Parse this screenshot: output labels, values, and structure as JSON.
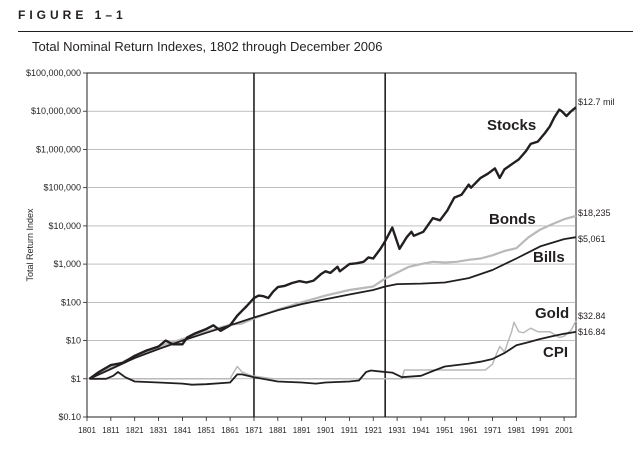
{
  "figure_label": "FIGURE 1–1",
  "title": "Total Nominal Return Indexes, 1802 through December 2006",
  "chart_data": {
    "type": "line",
    "title": "Total Nominal Return Indexes, 1802 through December 2006",
    "xlabel": "",
    "ylabel": "Total Return Index",
    "yscale": "log",
    "xlim": [
      1801,
      2006
    ],
    "ylim": [
      0.1,
      100000000
    ],
    "y_ticks": [
      {
        "value": 100000000,
        "label": "$100,000,000"
      },
      {
        "value": 10000000,
        "label": "$10,000,000"
      },
      {
        "value": 1000000,
        "label": "$1,000,000"
      },
      {
        "value": 100000,
        "label": "$100,000"
      },
      {
        "value": 10000,
        "label": "$10,000"
      },
      {
        "value": 1000,
        "label": "$1,000"
      },
      {
        "value": 100,
        "label": "$100"
      },
      {
        "value": 10,
        "label": "$10"
      },
      {
        "value": 1,
        "label": "$1"
      },
      {
        "value": 0.1,
        "label": "$0.10"
      }
    ],
    "x_ticks": [
      1801,
      1811,
      1821,
      1831,
      1841,
      1851,
      1861,
      1871,
      1881,
      1891,
      1901,
      1911,
      1921,
      1931,
      1941,
      1951,
      1961,
      1971,
      1981,
      1991,
      2001
    ],
    "vertical_markers": [
      1871,
      1926
    ],
    "series": [
      {
        "name": "Stocks",
        "end_label": "$12.7 mil",
        "color": "#231f20",
        "width": 2.4,
        "points": [
          [
            1802,
            1
          ],
          [
            1806,
            1.5
          ],
          [
            1811,
            2.3
          ],
          [
            1816,
            2.6
          ],
          [
            1821,
            4
          ],
          [
            1826,
            5.5
          ],
          [
            1831,
            7
          ],
          [
            1834,
            10
          ],
          [
            1837,
            8
          ],
          [
            1841,
            8
          ],
          [
            1843,
            12
          ],
          [
            1846,
            15
          ],
          [
            1851,
            20
          ],
          [
            1854,
            25
          ],
          [
            1857,
            18
          ],
          [
            1861,
            25
          ],
          [
            1864,
            45
          ],
          [
            1866,
            60
          ],
          [
            1868,
            80
          ],
          [
            1871,
            130
          ],
          [
            1873,
            150
          ],
          [
            1875,
            145
          ],
          [
            1877,
            130
          ],
          [
            1879,
            190
          ],
          [
            1881,
            250
          ],
          [
            1884,
            270
          ],
          [
            1887,
            320
          ],
          [
            1890,
            360
          ],
          [
            1893,
            330
          ],
          [
            1896,
            370
          ],
          [
            1899,
            540
          ],
          [
            1901,
            650
          ],
          [
            1903,
            590
          ],
          [
            1906,
            850
          ],
          [
            1907,
            650
          ],
          [
            1911,
            1000
          ],
          [
            1914,
            1050
          ],
          [
            1917,
            1150
          ],
          [
            1919,
            1500
          ],
          [
            1921,
            1400
          ],
          [
            1924,
            2500
          ],
          [
            1926,
            4000
          ],
          [
            1929,
            9000
          ],
          [
            1932,
            2500
          ],
          [
            1935,
            5000
          ],
          [
            1937,
            7000
          ],
          [
            1938,
            5500
          ],
          [
            1942,
            7000
          ],
          [
            1946,
            16000
          ],
          [
            1949,
            14000
          ],
          [
            1952,
            25000
          ],
          [
            1955,
            55000
          ],
          [
            1958,
            65000
          ],
          [
            1961,
            120000
          ],
          [
            1962,
            100000
          ],
          [
            1966,
            180000
          ],
          [
            1969,
            230000
          ],
          [
            1972,
            320000
          ],
          [
            1974,
            180000
          ],
          [
            1976,
            300000
          ],
          [
            1980,
            450000
          ],
          [
            1982,
            550000
          ],
          [
            1985,
            900000
          ],
          [
            1987,
            1400000
          ],
          [
            1990,
            1600000
          ],
          [
            1993,
            2700000
          ],
          [
            1995,
            4000000
          ],
          [
            1997,
            7000000
          ],
          [
            1999,
            11000000
          ],
          [
            2000,
            10000000
          ],
          [
            2002,
            7500000
          ],
          [
            2004,
            10000000
          ],
          [
            2006,
            12700000
          ]
        ]
      },
      {
        "name": "Bonds",
        "end_label": "$18,235",
        "color": "#b9b9b9",
        "width": 2.2,
        "points": [
          [
            1802,
            1
          ],
          [
            1811,
            2
          ],
          [
            1821,
            3.8
          ],
          [
            1831,
            7
          ],
          [
            1841,
            11
          ],
          [
            1851,
            17
          ],
          [
            1861,
            26
          ],
          [
            1866,
            28
          ],
          [
            1871,
            38
          ],
          [
            1881,
            64
          ],
          [
            1891,
            100
          ],
          [
            1901,
            150
          ],
          [
            1911,
            210
          ],
          [
            1921,
            260
          ],
          [
            1926,
            420
          ],
          [
            1931,
            600
          ],
          [
            1936,
            850
          ],
          [
            1941,
            1000
          ],
          [
            1946,
            1150
          ],
          [
            1951,
            1100
          ],
          [
            1956,
            1150
          ],
          [
            1961,
            1300
          ],
          [
            1966,
            1400
          ],
          [
            1971,
            1700
          ],
          [
            1976,
            2200
          ],
          [
            1981,
            2600
          ],
          [
            1986,
            5000
          ],
          [
            1991,
            8000
          ],
          [
            1996,
            11000
          ],
          [
            2001,
            15000
          ],
          [
            2006,
            18235
          ]
        ]
      },
      {
        "name": "Bills",
        "end_label": "$5,061",
        "color": "#231f20",
        "width": 1.8,
        "points": [
          [
            1802,
            1
          ],
          [
            1811,
            1.8
          ],
          [
            1821,
            3.5
          ],
          [
            1831,
            6
          ],
          [
            1841,
            10
          ],
          [
            1851,
            16
          ],
          [
            1861,
            25
          ],
          [
            1871,
            40
          ],
          [
            1881,
            62
          ],
          [
            1891,
            90
          ],
          [
            1901,
            120
          ],
          [
            1911,
            160
          ],
          [
            1921,
            210
          ],
          [
            1926,
            260
          ],
          [
            1931,
            300
          ],
          [
            1941,
            310
          ],
          [
            1951,
            330
          ],
          [
            1961,
            430
          ],
          [
            1971,
            700
          ],
          [
            1981,
            1400
          ],
          [
            1991,
            2900
          ],
          [
            2001,
            4500
          ],
          [
            2006,
            5061
          ]
        ]
      },
      {
        "name": "Gold",
        "end_label": "$32.84",
        "color": "#b9b9b9",
        "width": 1.5,
        "points": [
          [
            1802,
            1
          ],
          [
            1861,
            1
          ],
          [
            1862,
            1.3
          ],
          [
            1864,
            2.1
          ],
          [
            1866,
            1.5
          ],
          [
            1870,
            1.2
          ],
          [
            1879,
            1
          ],
          [
            1933,
            1
          ],
          [
            1934,
            1.7
          ],
          [
            1968,
            1.7
          ],
          [
            1971,
            2.4
          ],
          [
            1973,
            5
          ],
          [
            1974,
            7
          ],
          [
            1975,
            6
          ],
          [
            1976,
            5
          ],
          [
            1979,
            17
          ],
          [
            1980,
            30
          ],
          [
            1982,
            17
          ],
          [
            1984,
            16
          ],
          [
            1987,
            21
          ],
          [
            1990,
            17
          ],
          [
            1995,
            17
          ],
          [
            1999,
            12
          ],
          [
            2001,
            13
          ],
          [
            2004,
            19
          ],
          [
            2006,
            32.84
          ]
        ]
      },
      {
        "name": "CPI",
        "end_label": "$16.84",
        "color": "#231f20",
        "width": 1.8,
        "points": [
          [
            1802,
            1
          ],
          [
            1809,
            1
          ],
          [
            1812,
            1.2
          ],
          [
            1814,
            1.5
          ],
          [
            1817,
            1.1
          ],
          [
            1821,
            0.85
          ],
          [
            1831,
            0.8
          ],
          [
            1841,
            0.75
          ],
          [
            1845,
            0.7
          ],
          [
            1851,
            0.72
          ],
          [
            1861,
            0.8
          ],
          [
            1864,
            1.3
          ],
          [
            1866,
            1.3
          ],
          [
            1871,
            1.1
          ],
          [
            1881,
            0.85
          ],
          [
            1891,
            0.8
          ],
          [
            1897,
            0.75
          ],
          [
            1901,
            0.8
          ],
          [
            1911,
            0.85
          ],
          [
            1915,
            0.9
          ],
          [
            1918,
            1.5
          ],
          [
            1920,
            1.65
          ],
          [
            1926,
            1.5
          ],
          [
            1929,
            1.45
          ],
          [
            1933,
            1.1
          ],
          [
            1941,
            1.2
          ],
          [
            1946,
            1.6
          ],
          [
            1951,
            2.1
          ],
          [
            1961,
            2.5
          ],
          [
            1966,
            2.8
          ],
          [
            1971,
            3.3
          ],
          [
            1976,
            4.7
          ],
          [
            1981,
            7.5
          ],
          [
            1986,
            9
          ],
          [
            1991,
            11
          ],
          [
            1996,
            13
          ],
          [
            2001,
            15
          ],
          [
            2006,
            16.84
          ]
        ]
      }
    ],
    "series_labels": [
      {
        "series": "Stocks",
        "text": "Stocks"
      },
      {
        "series": "Bonds",
        "text": "Bonds"
      },
      {
        "series": "Bills",
        "text": "Bills"
      },
      {
        "series": "Gold",
        "text": "Gold"
      },
      {
        "series": "CPI",
        "text": "CPI"
      }
    ]
  }
}
